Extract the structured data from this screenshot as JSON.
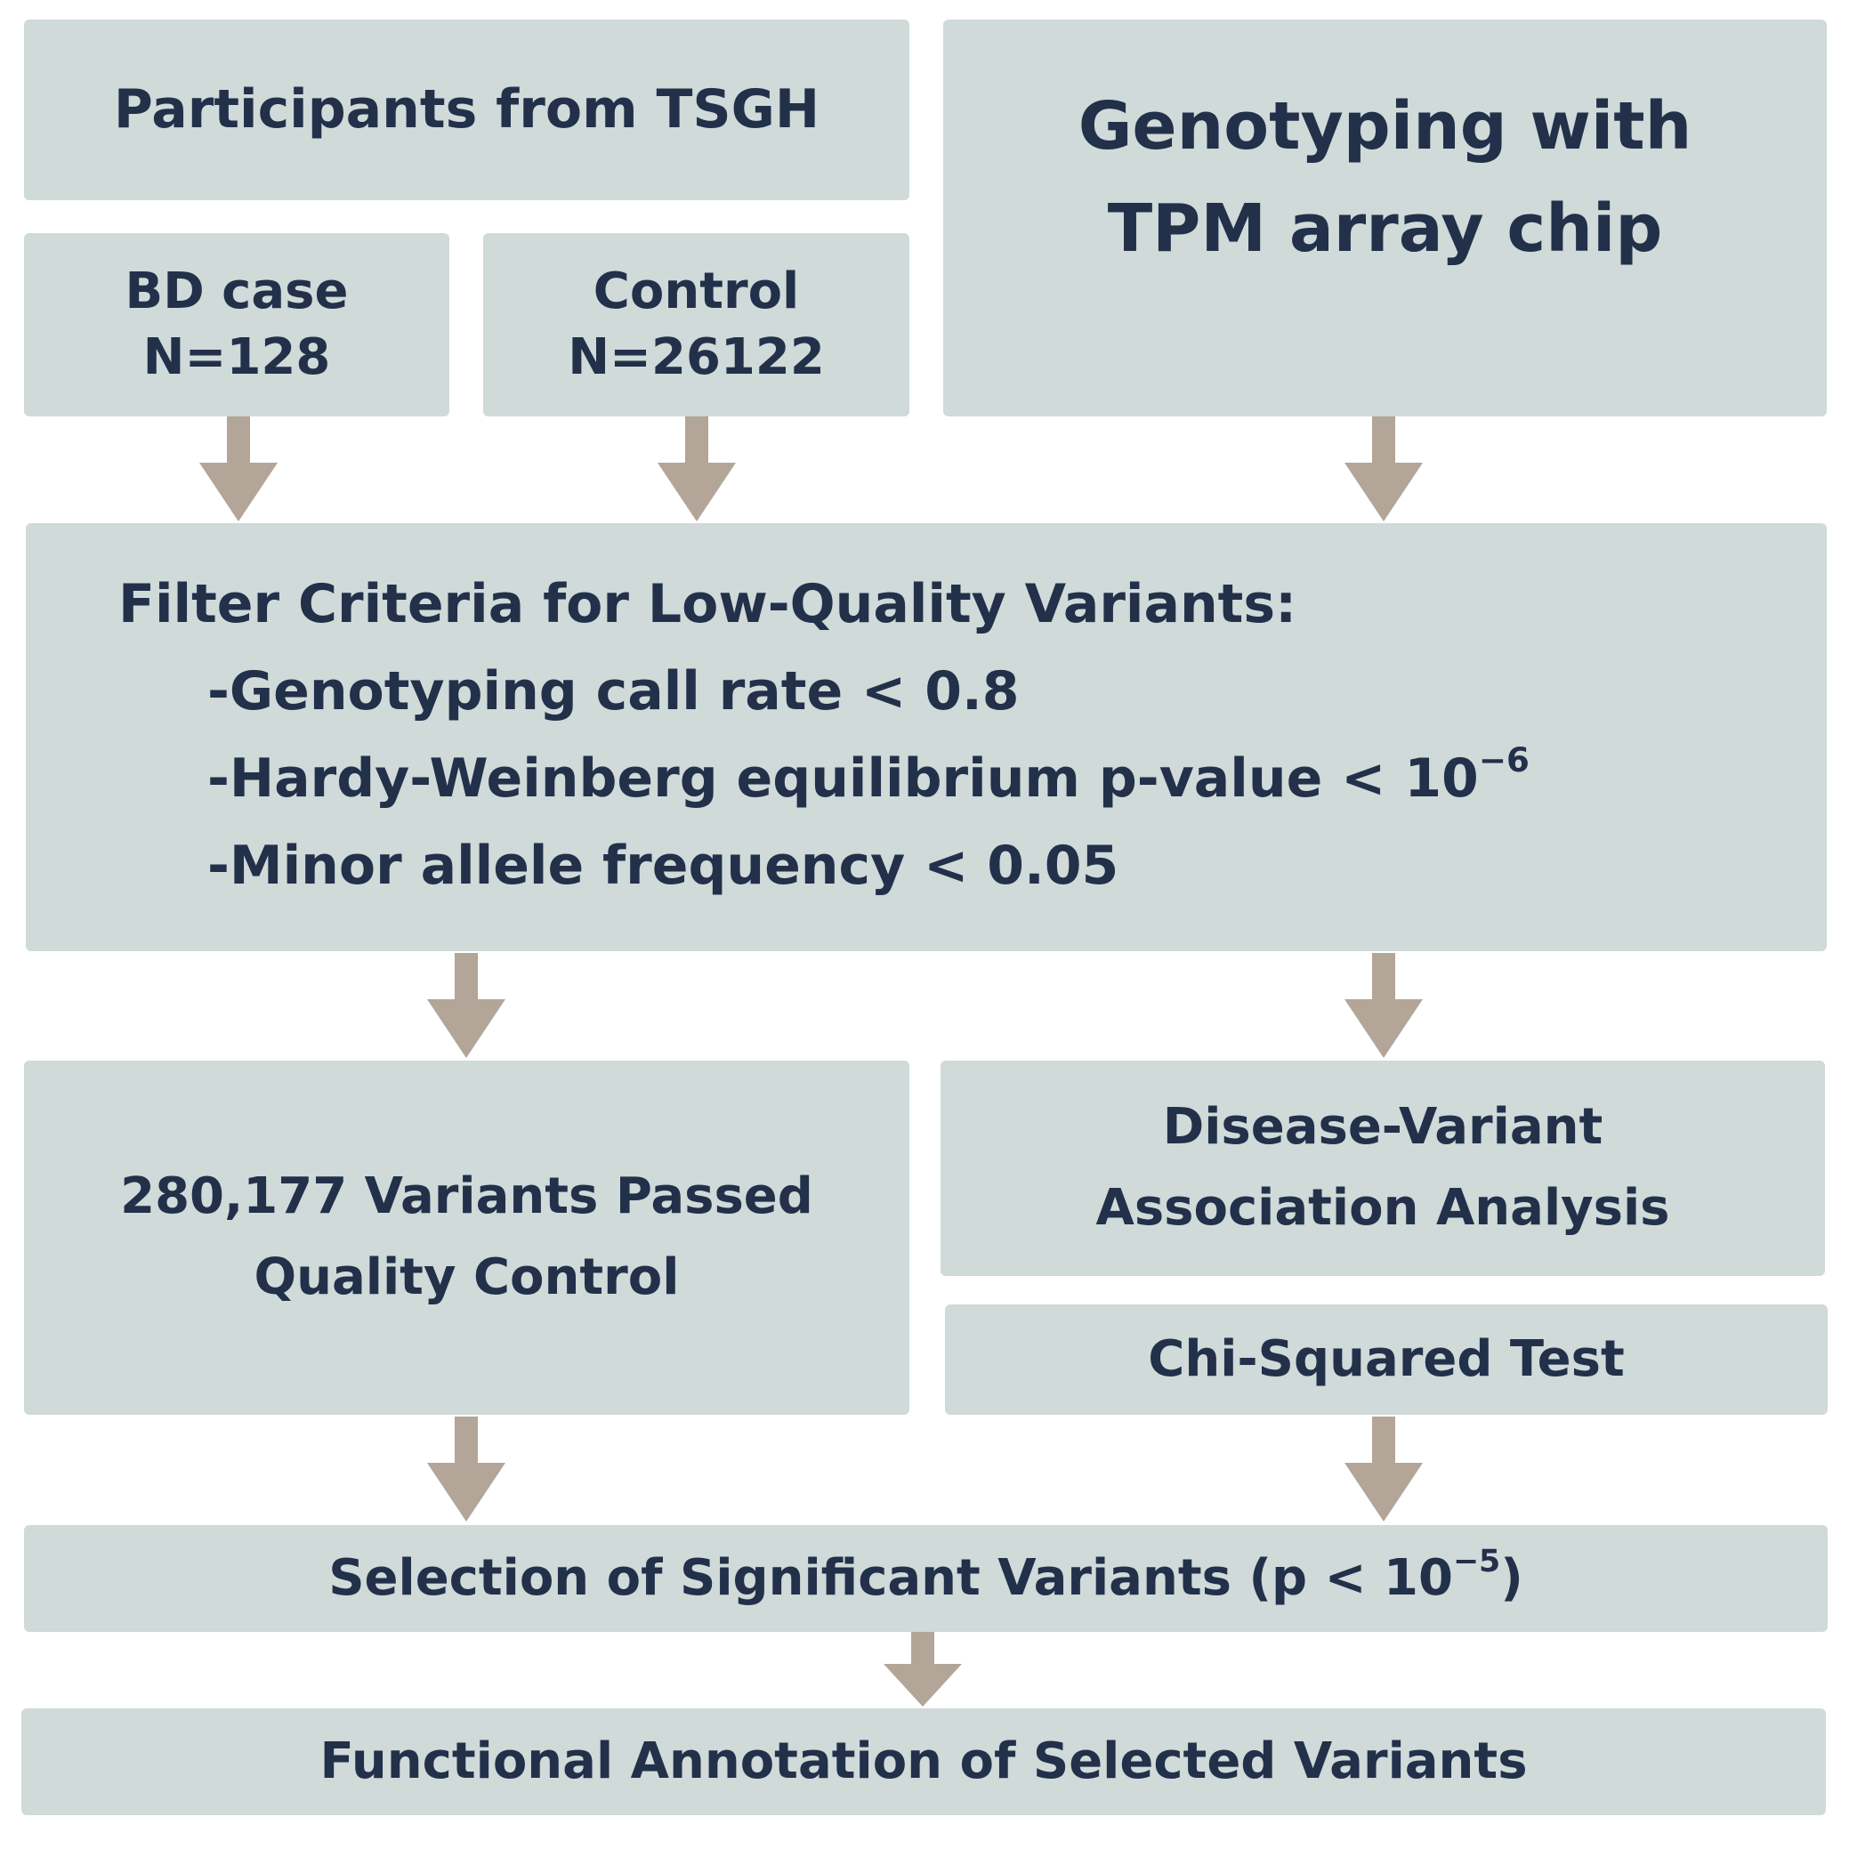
{
  "participants": {
    "title": "Participants from TSGH"
  },
  "bd_case": {
    "label": "BD case",
    "n": "N=128"
  },
  "control": {
    "label": "Control",
    "n": "N=26122"
  },
  "genotyping": {
    "line1": "Genotyping with",
    "line2": "TPM array chip"
  },
  "filter": {
    "title": "Filter Criteria for Low-Quality Variants:",
    "items": [
      "-Genotyping call rate < 0.8",
      "-Hardy-Weinberg equilibrium p-value < 10",
      "-Minor allele frequency < 0.05"
    ],
    "hwe_exponent": "−6"
  },
  "passed_qc": {
    "line1": "280,177 Variants Passed",
    "line2": "Quality Control"
  },
  "association": {
    "line1": "Disease-Variant",
    "line2": "Association Analysis"
  },
  "chi_squared": {
    "label": "Chi-Squared Test"
  },
  "selection": {
    "label": "Selection of Significant Variants (p < 10",
    "exponent": "−5",
    "suffix": ")"
  },
  "annotation": {
    "label": "Functional Annotation of Selected Variants"
  },
  "colors": {
    "box_fill": "#cfdad9",
    "arrow": "#b3a597",
    "text": "#22304a"
  }
}
